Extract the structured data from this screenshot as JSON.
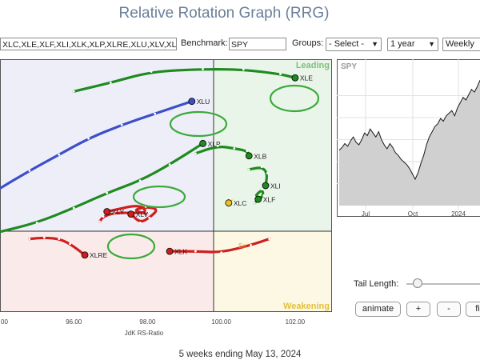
{
  "page": {
    "title": "Relative Rotation Graph (RRG)"
  },
  "controls": {
    "symbols_value": "XLC,XLE,XLF,XLI,XLK,XLP,XLRE,XLU,XLV,XL",
    "benchmark_label": "Benchmark:",
    "benchmark_value": "SPY",
    "groups_label": "Groups:",
    "groups_value": "- Select -",
    "period_value": "1 year",
    "interval_value": "Weekly"
  },
  "rrg": {
    "quadrants": {
      "leading": "Leading",
      "weakening": "Weakening"
    },
    "x_axis": {
      "label": "JdK RS-Ratio",
      "range": [
        94.0,
        103.0
      ],
      "ticks": [
        "00",
        "96.00",
        "98.00",
        "100.00",
        "102.00"
      ]
    },
    "y_axis": {
      "range": [
        95.0,
        105.2
      ]
    },
    "partial_label": "Se",
    "series": [
      {
        "name": "XLE",
        "color": "#1f8a1f",
        "points": [
          [
            96.0,
            103.9
          ],
          [
            97.0,
            104.25
          ],
          [
            98.1,
            104.7
          ],
          [
            99.5,
            104.8
          ],
          [
            100.6,
            104.78
          ],
          [
            101.6,
            104.6
          ],
          [
            102.0,
            104.45
          ]
        ]
      },
      {
        "name": "XLU",
        "color": "#3c4fc8",
        "points": [
          [
            93.9,
            99.9
          ],
          [
            94.8,
            100.7
          ],
          [
            95.6,
            101.35
          ],
          [
            96.4,
            102.0
          ],
          [
            97.3,
            102.55
          ],
          [
            98.2,
            103.0
          ],
          [
            99.2,
            103.5
          ]
        ]
      },
      {
        "name": "XLP",
        "color": "#1f8a1f",
        "points": [
          [
            93.9,
            98.2
          ],
          [
            95.0,
            98.6
          ],
          [
            96.0,
            99.2
          ],
          [
            96.9,
            99.8
          ],
          [
            97.8,
            100.3
          ],
          [
            98.6,
            100.95
          ],
          [
            99.5,
            101.8
          ]
        ]
      },
      {
        "name": "XLB",
        "color": "#1f8a1f",
        "points": [
          [
            99.3,
            101.4
          ],
          [
            99.9,
            101.7
          ],
          [
            100.35,
            101.6
          ],
          [
            100.7,
            101.5
          ],
          [
            100.75,
            101.3
          ]
        ]
      },
      {
        "name": "XLI",
        "color": "#1f8a1f",
        "points": [
          [
            100.75,
            100.75
          ],
          [
            101.1,
            100.85
          ],
          [
            101.25,
            100.6
          ],
          [
            101.2,
            100.1
          ]
        ]
      },
      {
        "name": "XLF",
        "color": "#1f8a1f",
        "points": [
          [
            100.9,
            99.4
          ],
          [
            101.15,
            99.7
          ],
          [
            101.1,
            99.95
          ],
          [
            100.9,
            99.65
          ],
          [
            101.0,
            99.55
          ]
        ]
      },
      {
        "name": "XLC",
        "color": "#e8c020",
        "points": [
          [
            100.15,
            99.45
          ],
          [
            100.25,
            99.55
          ],
          [
            100.3,
            99.45
          ],
          [
            100.2,
            99.4
          ]
        ]
      },
      {
        "name": "XLY",
        "color": "#cf1e1e",
        "points": [
          [
            96.7,
            98.65
          ],
          [
            96.8,
            98.85
          ],
          [
            97.1,
            99.0
          ],
          [
            97.5,
            99.0
          ],
          [
            98.0,
            99.0
          ],
          [
            97.8,
            99.35
          ],
          [
            96.9,
            99.05
          ]
        ]
      },
      {
        "name": "XLV",
        "color": "#cf1e1e",
        "points": [
          [
            98.0,
            98.95
          ],
          [
            97.6,
            99.1
          ],
          [
            97.95,
            99.25
          ],
          [
            98.3,
            99.15
          ],
          [
            98.05,
            98.8
          ],
          [
            97.8,
            98.6
          ],
          [
            97.55,
            98.95
          ]
        ]
      },
      {
        "name": "XLRE",
        "color": "#cf1e1e",
        "points": [
          [
            94.8,
            97.95
          ],
          [
            95.2,
            98.0
          ],
          [
            95.6,
            97.95
          ],
          [
            95.9,
            97.75
          ],
          [
            96.3,
            97.3
          ]
        ]
      },
      {
        "name": "XLK",
        "color": "#cf1e1e",
        "points": [
          [
            101.3,
            97.95
          ],
          [
            100.8,
            97.7
          ],
          [
            100.0,
            97.4
          ],
          [
            99.3,
            97.45
          ],
          [
            98.6,
            97.45
          ]
        ]
      }
    ],
    "label_overrides": {
      "XLU": "XLU",
      "XLV": "XLV"
    }
  },
  "chart_data": {
    "type": "line",
    "title": "SPY",
    "x_ticks": [
      "Jul",
      "Oct",
      "2024"
    ],
    "y_hidden": true,
    "values": [
      0.42,
      0.44,
      0.47,
      0.45,
      0.49,
      0.52,
      0.48,
      0.46,
      0.5,
      0.55,
      0.53,
      0.58,
      0.55,
      0.52,
      0.56,
      0.5,
      0.46,
      0.43,
      0.47,
      0.44,
      0.4,
      0.38,
      0.35,
      0.33,
      0.31,
      0.28,
      0.24,
      0.2,
      0.25,
      0.32,
      0.38,
      0.46,
      0.52,
      0.56,
      0.6,
      0.62,
      0.66,
      0.64,
      0.68,
      0.7,
      0.72,
      0.68,
      0.74,
      0.78,
      0.82,
      0.8,
      0.84,
      0.88,
      0.86,
      0.9,
      0.95
    ]
  },
  "tail": {
    "label": "Tail Length:",
    "value": 0.15
  },
  "buttons": {
    "animate": "animate",
    "plus": "+",
    "minus": "-",
    "fit": "fi"
  },
  "footer": {
    "text": "5 weeks ending May 13, 2024"
  }
}
